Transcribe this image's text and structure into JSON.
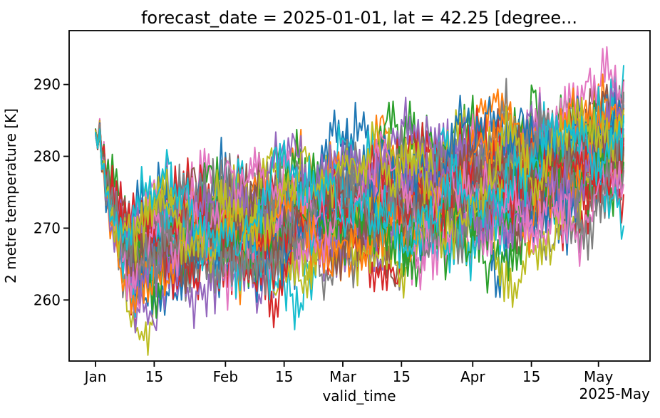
{
  "chart_data": {
    "type": "line",
    "title": "forecast_date = 2025-01-01, lat = 42.25 [degree...",
    "xlabel": "valid_time",
    "ylabel": "2 metre temperature [K]",
    "x_period_label": "2025-May",
    "x_start_date": "2025-01-01",
    "x_end_date": "2025-05-07",
    "x_ticks": [
      {
        "label": "Jan",
        "day": 0
      },
      {
        "label": "15",
        "day": 14
      },
      {
        "label": "Feb",
        "day": 31
      },
      {
        "label": "15",
        "day": 45
      },
      {
        "label": "Mar",
        "day": 59
      },
      {
        "label": "15",
        "day": 73
      },
      {
        "label": "Apr",
        "day": 90
      },
      {
        "label": "15",
        "day": 104
      },
      {
        "label": "May",
        "day": 120
      }
    ],
    "y_ticks": [
      260,
      270,
      280,
      290
    ],
    "xlim_days": [
      -6.3,
      132.3
    ],
    "ylim": [
      251.5,
      297.5
    ],
    "grid": false,
    "legend_position": "none",
    "background_color": "#ffffff",
    "frame_color": "#000000",
    "text_color": "#000000",
    "line_width": 2,
    "ensemble": {
      "description": "Overplotted ensemble members; per-member values not individually readable. Statistical envelope read from the plot.",
      "n_members": 50,
      "duration_days": 126,
      "time_step_days": 0.5,
      "seed": 20250101,
      "colors": [
        "#1f77b4",
        "#ff7f0e",
        "#2ca02c",
        "#d62728",
        "#9467bd",
        "#8c564b",
        "#e377c2",
        "#7f7f7f",
        "#bcbd22",
        "#17becf"
      ],
      "mean_keyframes": [
        [
          0,
          281.8
        ],
        [
          0.5,
          283.3
        ],
        [
          1.2,
          282.2
        ],
        [
          2,
          278.0
        ],
        [
          3,
          274.8
        ],
        [
          4.5,
          271.5
        ],
        [
          6,
          269.0
        ],
        [
          8,
          266.5
        ],
        [
          9.5,
          265.6
        ],
        [
          11,
          266.8
        ],
        [
          13,
          268.3
        ],
        [
          15,
          269.3
        ],
        [
          17,
          270.2
        ],
        [
          19,
          268.8
        ],
        [
          22,
          269.3
        ],
        [
          25,
          270.1
        ],
        [
          28,
          269.4
        ],
        [
          31,
          270.2
        ],
        [
          34,
          270.0
        ],
        [
          38,
          270.8
        ],
        [
          42,
          271.0
        ],
        [
          46,
          271.3
        ],
        [
          50,
          271.9
        ],
        [
          55,
          272.5
        ],
        [
          59,
          273.2
        ],
        [
          63,
          273.7
        ],
        [
          68,
          274.2
        ],
        [
          73,
          274.9
        ],
        [
          78,
          275.3
        ],
        [
          83,
          275.8
        ],
        [
          88,
          276.2
        ],
        [
          93,
          276.8
        ],
        [
          98,
          277.2
        ],
        [
          103,
          277.8
        ],
        [
          108,
          278.4
        ],
        [
          112,
          279.0
        ],
        [
          116,
          279.7
        ],
        [
          120,
          280.6
        ],
        [
          123,
          281.5
        ],
        [
          126,
          282.4
        ]
      ],
      "spread_keyframes": [
        [
          0,
          0.15
        ],
        [
          1,
          0.5
        ],
        [
          2,
          1.1
        ],
        [
          3,
          1.7
        ],
        [
          5,
          2.6
        ],
        [
          7,
          3.3
        ],
        [
          10,
          3.9
        ],
        [
          14,
          4.2
        ],
        [
          20,
          4.4
        ],
        [
          30,
          4.5
        ],
        [
          50,
          4.7
        ],
        [
          80,
          4.7
        ],
        [
          100,
          4.5
        ],
        [
          115,
          4.2
        ],
        [
          126,
          4.0
        ]
      ],
      "diurnal_amplitude_K": [
        1.2,
        2.0
      ],
      "diurnal_base_phase_days": 0.3,
      "noise_sigma_K": 0.7,
      "ar_persistence_per_step": 0.95,
      "value_extremes_K": {
        "min": 254,
        "max": 295.5
      }
    }
  }
}
